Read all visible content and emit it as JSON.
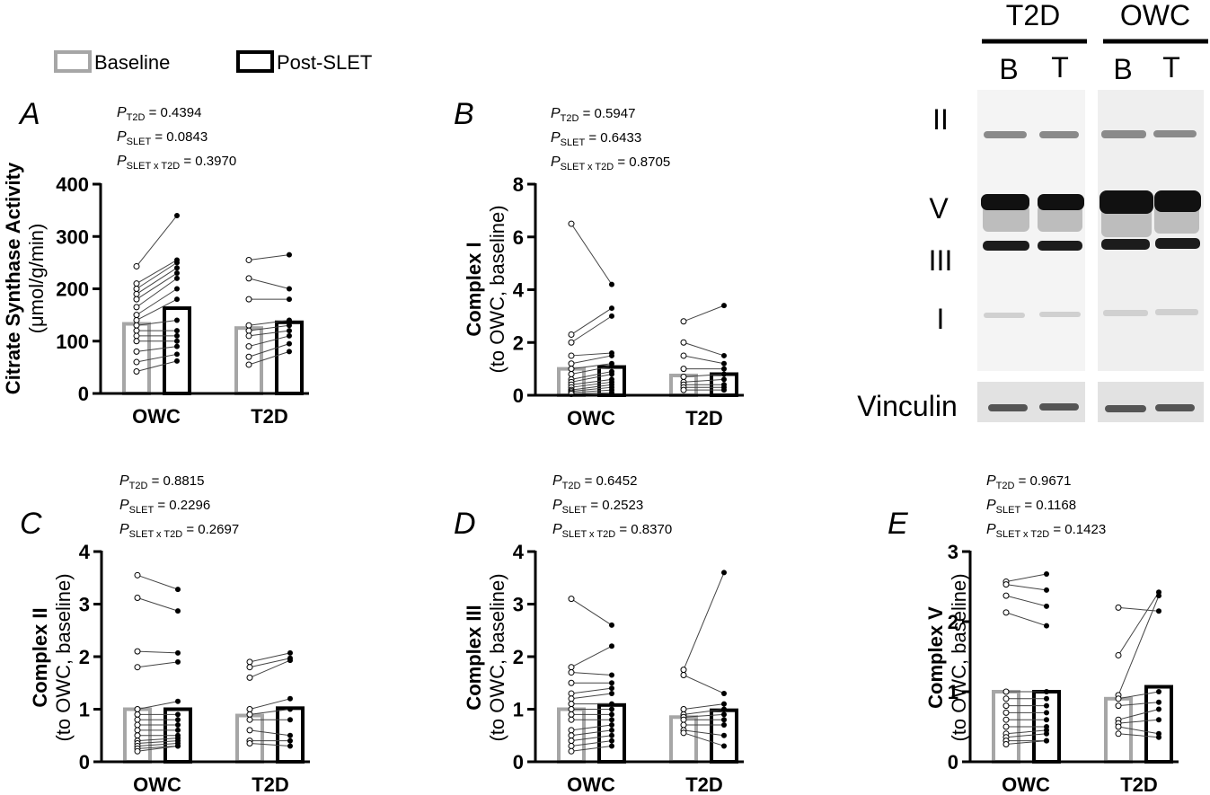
{
  "legend_title": null,
  "blot": {
    "groups": [
      "T2D",
      "OWC"
    ],
    "lanes": [
      "B",
      "T",
      "B",
      "T"
    ],
    "bands": [
      "II",
      "V",
      "III",
      "I"
    ],
    "loading": "Vinculin"
  },
  "chart_data": [
    {
      "type": "bar",
      "panel": "A",
      "p_symbol": "P",
      "stats": [
        {
          "sub": "T2D",
          "text": " = 0.4394"
        },
        {
          "sub": "SLET",
          "text": " = 0.0843"
        },
        {
          "sub": "SLET x T2D",
          "text": " = 0.3970"
        }
      ],
      "ylabel": [
        "Citrate Synthase Activity",
        "(μmol/g/min)"
      ],
      "categories": [
        "OWC",
        "T2D"
      ],
      "series": [
        {
          "name": "Baseline",
          "color": "#a6a6a6",
          "values": [
            133,
            125
          ],
          "points": [
            [
              243,
              210,
              200,
              190,
              180,
              165,
              150,
              140,
              130,
              120,
              110,
              100,
              80,
              60,
              42
            ],
            [
              255,
              220,
              180,
              130,
              120,
              110,
              90,
              70,
              55
            ]
          ]
        },
        {
          "name": "Post-SLET",
          "color": "#000000",
          "values": [
            163,
            136
          ],
          "points": [
            [
              340,
              255,
              250,
              240,
              230,
              220,
              200,
              180,
              140,
              120,
              110,
              100,
              90,
              75,
              62
            ],
            [
              265,
              200,
              180,
              140,
              130,
              120,
              110,
              95,
              80
            ]
          ]
        }
      ],
      "ylim": [
        0,
        400
      ],
      "yticks": [
        0,
        100,
        200,
        300,
        400
      ]
    },
    {
      "type": "bar",
      "panel": "B",
      "p_symbol": "P",
      "stats": [
        {
          "sub": "T2D",
          "text": " = 0.5947"
        },
        {
          "sub": "SLET",
          "text": " = 0.6433"
        },
        {
          "sub": "SLET x T2D",
          "text": " = 0.8705"
        }
      ],
      "ylabel": [
        "Complex I",
        "(to OWC, baseline)"
      ],
      "categories": [
        "OWC",
        "T2D"
      ],
      "series": [
        {
          "color": "#a6a6a6",
          "values": [
            1.0,
            0.75
          ],
          "points": [
            [
              6.5,
              2.3,
              2.0,
              1.5,
              1.2,
              1.0,
              0.8,
              0.6,
              0.5,
              0.4,
              0.3,
              0.2,
              0.15,
              0.1,
              0.05
            ],
            [
              2.8,
              2.0,
              1.5,
              1.0,
              0.7,
              0.5,
              0.4,
              0.3,
              0.2
            ]
          ]
        },
        {
          "color": "#000000",
          "values": [
            1.07,
            0.8
          ],
          "points": [
            [
              4.2,
              3.3,
              3.0,
              1.6,
              1.5,
              1.2,
              1.1,
              0.9,
              0.8,
              0.6,
              0.5,
              0.4,
              0.3,
              0.2,
              0.1
            ],
            [
              3.4,
              1.5,
              1.2,
              1.0,
              0.8,
              0.6,
              0.4,
              0.3,
              0.2
            ]
          ]
        }
      ],
      "ylim": [
        0,
        8
      ],
      "yticks": [
        0,
        2,
        4,
        6,
        8
      ]
    },
    {
      "type": "bar",
      "panel": "C",
      "p_symbol": "P",
      "stats": [
        {
          "sub": "T2D",
          "text": " = 0.8815"
        },
        {
          "sub": "SLET",
          "text": " = 0.2296"
        },
        {
          "sub": "SLET x T2D",
          "text": " = 0.2697"
        }
      ],
      "ylabel": [
        "Complex II",
        "(to OWC, baseline)"
      ],
      "categories": [
        "OWC",
        "T2D"
      ],
      "series": [
        {
          "color": "#a6a6a6",
          "values": [
            1.0,
            0.88
          ],
          "points": [
            [
              3.55,
              3.12,
              2.1,
              1.8,
              1.0,
              0.9,
              0.8,
              0.7,
              0.6,
              0.5,
              0.4,
              0.35,
              0.3,
              0.25,
              0.2
            ],
            [
              1.9,
              1.8,
              1.6,
              1.0,
              0.9,
              0.8,
              0.6,
              0.4,
              0.35
            ]
          ]
        },
        {
          "color": "#000000",
          "values": [
            1.0,
            1.02
          ],
          "points": [
            [
              3.28,
              2.87,
              2.07,
              1.9,
              1.15,
              0.9,
              0.8,
              0.7,
              0.6,
              0.5,
              0.45,
              0.4,
              0.35,
              0.3,
              0.3
            ],
            [
              2.07,
              1.97,
              1.93,
              1.2,
              1.0,
              0.8,
              0.5,
              0.4,
              0.3
            ]
          ]
        }
      ],
      "ylim": [
        0,
        4
      ],
      "yticks": [
        0,
        1,
        2,
        3,
        4
      ]
    },
    {
      "type": "bar",
      "panel": "D",
      "p_symbol": "P",
      "stats": [
        {
          "sub": "T2D",
          "text": " = 0.6452"
        },
        {
          "sub": "SLET",
          "text": " = 0.2523"
        },
        {
          "sub": "SLET x T2D",
          "text": " = 0.8370"
        }
      ],
      "ylabel": [
        "Complex III",
        "(to OWC, baseline)"
      ],
      "categories": [
        "OWC",
        "T2D"
      ],
      "series": [
        {
          "color": "#a6a6a6",
          "values": [
            1.0,
            0.85
          ],
          "points": [
            [
              3.1,
              1.8,
              1.7,
              1.5,
              1.3,
              1.2,
              1.1,
              1.0,
              0.9,
              0.8,
              0.6,
              0.5,
              0.4,
              0.3,
              0.2
            ],
            [
              1.75,
              1.65,
              1.0,
              0.9,
              0.85,
              0.8,
              0.7,
              0.6,
              0.55
            ]
          ]
        },
        {
          "color": "#000000",
          "values": [
            1.08,
            0.98
          ],
          "points": [
            [
              2.6,
              2.2,
              1.65,
              1.5,
              1.4,
              1.3,
              1.1,
              1.0,
              0.9,
              0.8,
              0.7,
              0.6,
              0.5,
              0.4,
              0.3
            ],
            [
              3.6,
              1.3,
              1.1,
              1.0,
              0.9,
              0.8,
              0.7,
              0.5,
              0.3
            ]
          ]
        }
      ],
      "ylim": [
        0,
        4
      ],
      "yticks": [
        0,
        1,
        2,
        3,
        4
      ]
    },
    {
      "type": "bar",
      "panel": "E",
      "p_symbol": "P",
      "stats": [
        {
          "sub": "T2D",
          "text": " = 0.9671"
        },
        {
          "sub": "SLET",
          "text": " = 0.1168"
        },
        {
          "sub": "SLET x T2D",
          "text": " = 0.1423"
        }
      ],
      "ylabel": [
        "Complex V",
        "(to OWC, baseline)"
      ],
      "categories": [
        "OWC",
        "T2D"
      ],
      "series": [
        {
          "color": "#a6a6a6",
          "values": [
            1.0,
            0.9
          ],
          "points": [
            [
              2.57,
              2.53,
              2.37,
              2.13,
              1.0,
              0.9,
              0.8,
              0.7,
              0.6,
              0.5,
              0.4,
              0.35,
              0.3,
              0.25
            ],
            [
              2.2,
              1.52,
              0.95,
              0.9,
              0.8,
              0.6,
              0.55,
              0.5,
              0.4
            ]
          ]
        },
        {
          "color": "#000000",
          "values": [
            1.0,
            1.07
          ],
          "points": [
            [
              2.68,
              2.45,
              2.22,
              1.94,
              1.0,
              0.9,
              0.8,
              0.7,
              0.6,
              0.5,
              0.45,
              0.4,
              0.3,
              0.3
            ],
            [
              2.15,
              2.42,
              2.37,
              1.0,
              0.85,
              0.75,
              0.6,
              0.4,
              0.35
            ]
          ]
        }
      ],
      "ylim": [
        0,
        3
      ],
      "yticks": [
        0,
        1,
        2,
        3
      ]
    }
  ]
}
